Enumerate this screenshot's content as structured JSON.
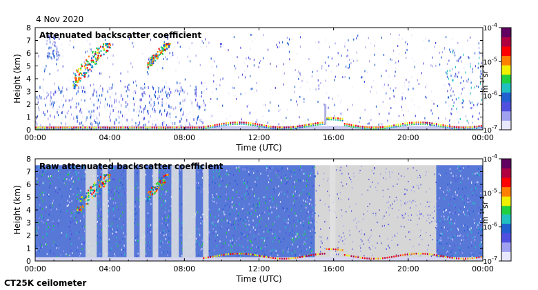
{
  "date_label": "4 Nov 2020",
  "footer_label": "CT25K ceilometer",
  "chart_data": [
    {
      "type": "heatmap",
      "title": "Attenuated backscatter coefficient",
      "xlabel": "Time (UTC)",
      "ylabel": "Height (km)",
      "xlim": [
        "00:00",
        "24:00"
      ],
      "ylim": [
        0,
        8
      ],
      "x_ticks": [
        "00:00",
        "04:00",
        "08:00",
        "12:00",
        "16:00",
        "20:00",
        "00:00"
      ],
      "y_ticks": [
        "0",
        "1",
        "2",
        "3",
        "4",
        "5",
        "6",
        "7",
        "8"
      ],
      "colorbar": {
        "scale": "log",
        "range": [
          1e-07,
          0.0001
        ],
        "ticks": [
          {
            "mant": "10",
            "exp": "-7"
          },
          {
            "mant": "10",
            "exp": "-6"
          },
          {
            "mant": "10",
            "exp": "-5"
          },
          {
            "mant": "10",
            "exp": "-4"
          }
        ],
        "unit": {
          "m": "m",
          "mexp": "-1",
          "sr": "sr",
          "srexp": "-1"
        },
        "colors": [
          "#e8e8ff",
          "#a0a0f0",
          "#5050e0",
          "#2060d0",
          "#20c0c0",
          "#20d040",
          "#f0f000",
          "#ff8000",
          "#ff0000",
          "#b00040",
          "#600060"
        ]
      },
      "features": [
        {
          "name": "near-surface aerosol layer",
          "time_range": [
            "00:00",
            "24:00"
          ],
          "height_km": [
            0.0,
            0.3
          ],
          "level": "1e-5 to 1e-4"
        },
        {
          "name": "boundary layer top",
          "time_range": [
            "09:00",
            "24:00"
          ],
          "height_km": [
            0.3,
            0.8
          ],
          "level": "1e-5 to 1e-4"
        },
        {
          "name": "mid-level cloud",
          "time_range": [
            "02:00",
            "04:00"
          ],
          "height_km": [
            3.2,
            6.8
          ],
          "level": "1e-5 to 1e-4"
        },
        {
          "name": "mid-level cloud",
          "time_range": [
            "06:00",
            "07:15"
          ],
          "height_km": [
            4.8,
            6.8
          ],
          "level": "1e-5 to 1e-4"
        },
        {
          "name": "scattered weak returns",
          "time_range": [
            "00:00",
            "24:00"
          ],
          "height_km": [
            0.5,
            7.5
          ],
          "level": "1e-7 to 1e-6"
        }
      ]
    },
    {
      "type": "heatmap",
      "title": "Raw attenuated backscatter coefficient",
      "xlabel": "Time (UTC)",
      "ylabel": "Height (km)",
      "xlim": [
        "00:00",
        "24:00"
      ],
      "ylim": [
        0,
        8
      ],
      "x_ticks": [
        "00:00",
        "04:00",
        "08:00",
        "12:00",
        "16:00",
        "20:00",
        "00:00"
      ],
      "y_ticks": [
        "0",
        "1",
        "2",
        "3",
        "4",
        "5",
        "6",
        "7",
        "8"
      ],
      "colorbar": {
        "scale": "log",
        "range": [
          1e-07,
          0.0001
        ],
        "ticks": [
          {
            "mant": "10",
            "exp": "-7"
          },
          {
            "mant": "10",
            "exp": "-6"
          },
          {
            "mant": "10",
            "exp": "-5"
          },
          {
            "mant": "10",
            "exp": "-4"
          }
        ],
        "unit": {
          "m": "m",
          "mexp": "-1",
          "sr": "sr",
          "srexp": "-1"
        },
        "colors": [
          "#e8e8ff",
          "#a0a0f0",
          "#5050e0",
          "#2060d0",
          "#20c0c0",
          "#20d040",
          "#f0f000",
          "#ff8000",
          "#ff0000",
          "#b00040",
          "#600060"
        ]
      },
      "features": [
        {
          "name": "dense noise field",
          "time_range": [
            "00:00",
            "15:00"
          ],
          "height_km": [
            0.5,
            7.5
          ],
          "level": "1e-7 to 1e-5"
        },
        {
          "name": "noise field",
          "time_range": [
            "21:00",
            "24:00"
          ],
          "height_km": [
            0.5,
            7.5
          ],
          "level": "1e-7 to 1e-5"
        },
        {
          "name": "grey sparse region",
          "time_range": [
            "15:00",
            "21:00"
          ],
          "height_km": [
            0.8,
            7.5
          ],
          "level": "below 1e-7"
        },
        {
          "name": "mid-level cloud",
          "time_range": [
            "02:00",
            "04:00"
          ],
          "height_km": [
            3.5,
            6.8
          ],
          "level": "1e-5 to 1e-4"
        },
        {
          "name": "mid-level cloud",
          "time_range": [
            "06:00",
            "07:15"
          ],
          "height_km": [
            4.8,
            6.8
          ],
          "level": "1e-5 to 1e-4"
        },
        {
          "name": "boundary layer top",
          "time_range": [
            "09:00",
            "24:00"
          ],
          "height_km": [
            0.3,
            0.8
          ],
          "level": "1e-5 to 1e-4"
        }
      ]
    }
  ]
}
